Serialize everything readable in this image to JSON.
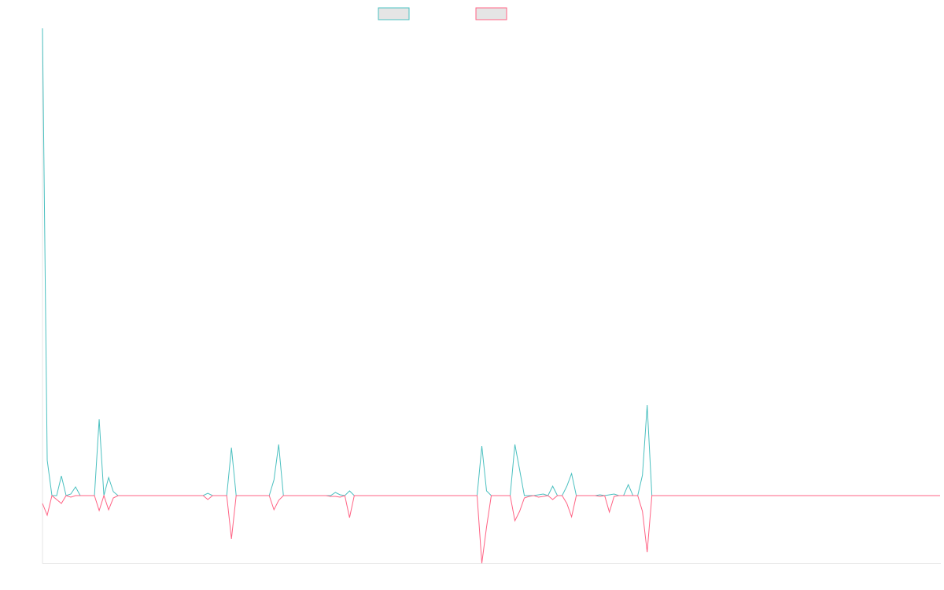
{
  "chart_data": {
    "type": "line",
    "ylim": [
      -8.6,
      59.4
    ],
    "series": [
      {
        "color": "#4bc0c0",
        "values": [
          59.4,
          4.5,
          0,
          0,
          2.5,
          0,
          0.2,
          1.1,
          0,
          0,
          0,
          0,
          9.7,
          0,
          2.3,
          0.5,
          0,
          0,
          0,
          0,
          0,
          0,
          0,
          0,
          0,
          0,
          0,
          0,
          0,
          0,
          0,
          0,
          0,
          0,
          0,
          0.3,
          0,
          0,
          0,
          0,
          6.1,
          0,
          0,
          0,
          0,
          0,
          0,
          0,
          0,
          2,
          6.5,
          0,
          0,
          0,
          0,
          0,
          0,
          0,
          0,
          0,
          0,
          0,
          0.4,
          0.1,
          0,
          0.6,
          0,
          0,
          0,
          0,
          0,
          0,
          0,
          0,
          0,
          0,
          0,
          0,
          0,
          0,
          0,
          0,
          0,
          0,
          0,
          0,
          0,
          0,
          0,
          0,
          0,
          0,
          0,
          6.3,
          0.6,
          0,
          0,
          0,
          0,
          0,
          6.5,
          3.3,
          0,
          0,
          0,
          0.1,
          0.2,
          0,
          1.2,
          0,
          0,
          1.2,
          2.8,
          0,
          0,
          0,
          0,
          0,
          0.1,
          0,
          0.1,
          0.2,
          0,
          0,
          1.4,
          0,
          0,
          2.6,
          11.5,
          0,
          0,
          0,
          0,
          0,
          0,
          0,
          0,
          0,
          0,
          0,
          0,
          0,
          0,
          0,
          0,
          0,
          0,
          0,
          0,
          0,
          0,
          0,
          0,
          0,
          0,
          0,
          0,
          0,
          0,
          0,
          0,
          0,
          0,
          0,
          0,
          0,
          0,
          0,
          0,
          0,
          0,
          0,
          0,
          0,
          0,
          0,
          0,
          0,
          0,
          0,
          0,
          0,
          0,
          0,
          0,
          0,
          0,
          0,
          0,
          0,
          0
        ]
      },
      {
        "color": "#ff6384",
        "values": [
          -1,
          -2.5,
          0,
          -0.5,
          -1,
          0,
          -0.2,
          0,
          0,
          0,
          0,
          0,
          -1.9,
          0,
          -1.8,
          -0.3,
          0,
          0,
          0,
          0,
          0,
          0,
          0,
          0,
          0,
          0,
          0,
          0,
          0,
          0,
          0,
          0,
          0,
          0,
          0,
          -0.5,
          0,
          0,
          0,
          0,
          -5.5,
          0,
          0,
          0,
          0,
          0,
          0,
          0,
          0,
          -1.8,
          -0.6,
          0,
          0,
          0,
          0,
          0,
          0,
          0,
          0,
          0,
          0,
          -0.1,
          -0.1,
          -0.2,
          0,
          -2.8,
          0,
          0,
          0,
          0,
          0,
          0,
          0,
          0,
          0,
          0,
          0,
          0,
          0,
          0,
          0,
          0,
          0,
          0,
          0,
          0,
          0,
          0,
          0,
          0,
          0,
          0,
          0,
          -8.6,
          -4,
          0,
          0,
          0,
          0,
          0,
          -3.2,
          -2,
          -0.3,
          -0.1,
          0,
          -0.2,
          -0.1,
          0,
          -0.5,
          0,
          0,
          -1,
          -2.7,
          0,
          0,
          0,
          0,
          0,
          -0.1,
          0,
          -2.1,
          -0.1,
          0,
          0,
          0,
          0,
          0,
          -2,
          -7.2,
          0,
          0,
          0,
          0,
          0,
          0,
          0,
          0,
          0,
          0,
          0,
          0,
          0,
          0,
          0,
          0,
          0,
          0,
          0,
          0,
          0,
          0,
          0,
          0,
          0,
          0,
          0,
          0,
          0,
          0,
          0,
          0,
          0,
          0,
          0,
          0,
          0,
          0,
          0,
          0,
          0,
          0,
          0,
          0,
          0,
          0,
          0,
          0,
          0,
          0,
          0,
          0,
          0,
          0,
          0,
          0,
          0,
          0,
          0,
          0,
          0,
          0
        ]
      }
    ]
  }
}
